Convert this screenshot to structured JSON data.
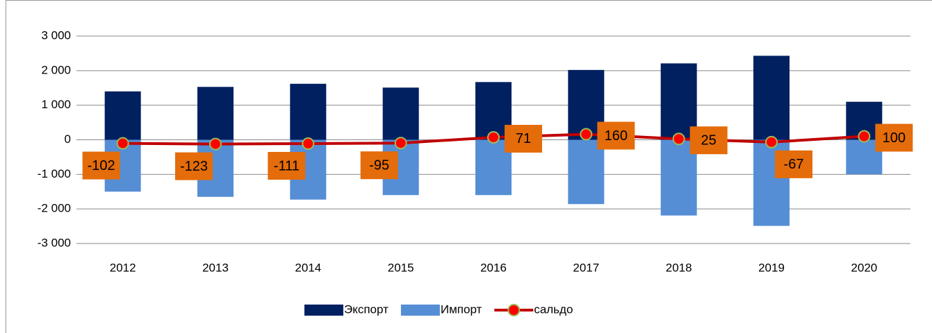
{
  "chart_data": {
    "type": "bar_line",
    "categories": [
      "2012",
      "2013",
      "2014",
      "2015",
      "2016",
      "2017",
      "2018",
      "2019",
      "2020"
    ],
    "series": [
      {
        "name": "Экспорт",
        "type": "bar",
        "color": "#002060",
        "values": [
          1400,
          1530,
          1620,
          1510,
          1670,
          2020,
          2210,
          2430,
          1100
        ]
      },
      {
        "name": "Импорт",
        "type": "bar",
        "color": "#558ed5",
        "values": [
          -1500,
          -1650,
          -1730,
          -1600,
          -1600,
          -1860,
          -2190,
          -2490,
          -1000
        ]
      },
      {
        "name": "сальдо",
        "type": "line",
        "color": "#c00000",
        "marker_color": "#ff0000",
        "label_color": "#e46c0a",
        "values": [
          -102,
          -123,
          -111,
          -95,
          71,
          160,
          25,
          -67,
          100
        ]
      }
    ],
    "ylim": [
      -3000,
      3000
    ],
    "yticks": [
      {
        "value": -3000,
        "label": "-3 000"
      },
      {
        "value": -2000,
        "label": "-2 000"
      },
      {
        "value": -1000,
        "label": "-1 000"
      },
      0,
      {
        "value": 1000,
        "label": "1 000"
      },
      {
        "value": 2000,
        "label": "2 000"
      },
      {
        "value": 3000,
        "label": "3 000"
      }
    ],
    "grid": true,
    "legend": "bottom"
  }
}
